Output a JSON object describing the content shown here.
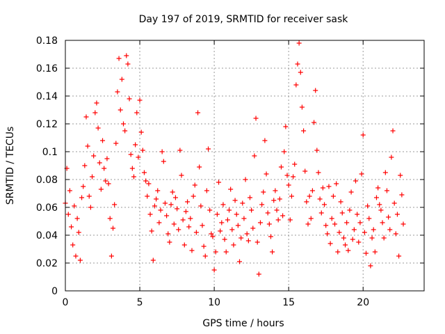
{
  "chart_data": {
    "type": "scatter",
    "title": "Day 197 of 2019, SRMTID for receiver sask",
    "xlabel": "GPS time / hours",
    "ylabel": "SRMTID / TECUs",
    "xlim": [
      0,
      24.1
    ],
    "ylim": [
      0,
      0.18
    ],
    "x_ticks": [
      {
        "value": 0,
        "label": "0"
      },
      {
        "value": 5,
        "label": "5"
      },
      {
        "value": 10,
        "label": "10"
      },
      {
        "value": 15,
        "label": "15"
      },
      {
        "value": 20,
        "label": "20"
      }
    ],
    "y_ticks": [
      {
        "value": 0,
        "label": "0"
      },
      {
        "value": 0.02,
        "label": "0.02"
      },
      {
        "value": 0.04,
        "label": "0.04"
      },
      {
        "value": 0.06,
        "label": "0.06"
      },
      {
        "value": 0.08,
        "label": "0.08"
      },
      {
        "value": 0.1,
        "label": "0.1"
      },
      {
        "value": 0.12,
        "label": "0.12"
      },
      {
        "value": 0.14,
        "label": "0.14"
      },
      {
        "value": 0.16,
        "label": "0.16"
      },
      {
        "value": 0.18,
        "label": "0.18"
      }
    ],
    "grid": true,
    "marker": "+",
    "color": "#ff0000",
    "series": [
      {
        "name": "SRMTID",
        "points": [
          [
            0.0,
            0.063
          ],
          [
            0.1,
            0.088
          ],
          [
            0.2,
            0.055
          ],
          [
            0.3,
            0.072
          ],
          [
            0.4,
            0.046
          ],
          [
            0.5,
            0.033
          ],
          [
            0.6,
            0.061
          ],
          [
            0.7,
            0.025
          ],
          [
            0.8,
            0.052
          ],
          [
            0.9,
            0.042
          ],
          [
            1.0,
            0.022
          ],
          [
            1.1,
            0.067
          ],
          [
            1.2,
            0.075
          ],
          [
            1.3,
            0.09
          ],
          [
            1.4,
            0.125
          ],
          [
            1.5,
            0.104
          ],
          [
            1.6,
            0.068
          ],
          [
            1.7,
            0.06
          ],
          [
            1.8,
            0.082
          ],
          [
            1.9,
            0.097
          ],
          [
            2.0,
            0.128
          ],
          [
            2.1,
            0.135
          ],
          [
            2.2,
            0.117
          ],
          [
            2.3,
            0.092
          ],
          [
            2.4,
            0.073
          ],
          [
            2.5,
            0.108
          ],
          [
            2.6,
            0.088
          ],
          [
            2.7,
            0.079
          ],
          [
            2.8,
            0.095
          ],
          [
            2.9,
            0.077
          ],
          [
            3.0,
            0.052
          ],
          [
            3.1,
            0.025
          ],
          [
            3.2,
            0.045
          ],
          [
            3.3,
            0.062
          ],
          [
            3.4,
            0.106
          ],
          [
            3.5,
            0.143
          ],
          [
            3.6,
            0.167
          ],
          [
            3.7,
            0.13
          ],
          [
            3.8,
            0.152
          ],
          [
            3.9,
            0.12
          ],
          [
            4.0,
            0.115
          ],
          [
            4.1,
            0.169
          ],
          [
            4.2,
            0.163
          ],
          [
            4.3,
            0.138
          ],
          [
            4.4,
            0.098
          ],
          [
            4.5,
            0.088
          ],
          [
            4.6,
            0.082
          ],
          [
            4.7,
            0.105
          ],
          [
            4.8,
            0.128
          ],
          [
            4.9,
            0.096
          ],
          [
            5.0,
            0.137
          ],
          [
            5.1,
            0.114
          ],
          [
            5.2,
            0.101
          ],
          [
            5.3,
            0.085
          ],
          [
            5.4,
            0.079
          ],
          [
            5.5,
            0.068
          ],
          [
            5.6,
            0.077
          ],
          [
            5.7,
            0.055
          ],
          [
            5.8,
            0.043
          ],
          [
            5.9,
            0.022
          ],
          [
            6.0,
            0.061
          ],
          [
            6.1,
            0.066
          ],
          [
            6.2,
            0.072
          ],
          [
            6.3,
            0.049
          ],
          [
            6.4,
            0.058
          ],
          [
            6.5,
            0.1
          ],
          [
            6.6,
            0.093
          ],
          [
            6.7,
            0.063
          ],
          [
            6.8,
            0.054
          ],
          [
            6.9,
            0.041
          ],
          [
            7.0,
            0.035
          ],
          [
            7.1,
            0.062
          ],
          [
            7.2,
            0.071
          ],
          [
            7.3,
            0.048
          ],
          [
            7.4,
            0.067
          ],
          [
            7.5,
            0.059
          ],
          [
            7.6,
            0.044
          ],
          [
            7.7,
            0.101
          ],
          [
            7.8,
            0.083
          ],
          [
            7.9,
            0.051
          ],
          [
            8.0,
            0.033
          ],
          [
            8.1,
            0.057
          ],
          [
            8.2,
            0.064
          ],
          [
            8.3,
            0.046
          ],
          [
            8.4,
            0.052
          ],
          [
            8.5,
            0.029
          ],
          [
            8.6,
            0.068
          ],
          [
            8.7,
            0.076
          ],
          [
            8.8,
            0.042
          ],
          [
            8.9,
            0.128
          ],
          [
            9.0,
            0.089
          ],
          [
            9.1,
            0.061
          ],
          [
            9.2,
            0.047
          ],
          [
            9.3,
            0.032
          ],
          [
            9.4,
            0.025
          ],
          [
            9.5,
            0.072
          ],
          [
            9.6,
            0.102
          ],
          [
            9.7,
            0.058
          ],
          [
            9.8,
            0.041
          ],
          [
            9.9,
            0.039
          ],
          [
            10.0,
            0.015
          ],
          [
            10.1,
            0.028
          ],
          [
            10.2,
            0.055
          ],
          [
            10.3,
            0.078
          ],
          [
            10.4,
            0.043
          ],
          [
            10.5,
            0.049
          ],
          [
            10.6,
            0.062
          ],
          [
            10.7,
            0.037
          ],
          [
            10.8,
            0.028
          ],
          [
            10.9,
            0.051
          ],
          [
            11.0,
            0.058
          ],
          [
            11.1,
            0.073
          ],
          [
            11.2,
            0.044
          ],
          [
            11.3,
            0.033
          ],
          [
            11.4,
            0.065
          ],
          [
            11.5,
            0.055
          ],
          [
            11.6,
            0.047
          ],
          [
            11.7,
            0.021
          ],
          [
            11.8,
            0.038
          ],
          [
            11.9,
            0.063
          ],
          [
            12.0,
            0.052
          ],
          [
            12.1,
            0.08
          ],
          [
            12.2,
            0.041
          ],
          [
            12.3,
            0.036
          ],
          [
            12.4,
            0.067
          ],
          [
            12.5,
            0.058
          ],
          [
            12.6,
            0.045
          ],
          [
            12.7,
            0.097
          ],
          [
            12.8,
            0.124
          ],
          [
            12.9,
            0.035
          ],
          [
            13.0,
            0.012
          ],
          [
            13.1,
            0.049
          ],
          [
            13.2,
            0.062
          ],
          [
            13.3,
            0.071
          ],
          [
            13.4,
            0.108
          ],
          [
            13.5,
            0.084
          ],
          [
            13.6,
            0.056
          ],
          [
            13.7,
            0.048
          ],
          [
            13.8,
            0.039
          ],
          [
            13.9,
            0.028
          ],
          [
            14.0,
            0.065
          ],
          [
            14.1,
            0.072
          ],
          [
            14.2,
            0.058
          ],
          [
            14.3,
            0.051
          ],
          [
            14.4,
            0.066
          ],
          [
            14.5,
            0.089
          ],
          [
            14.6,
            0.054
          ],
          [
            14.7,
            0.1
          ],
          [
            14.8,
            0.118
          ],
          [
            14.9,
            0.083
          ],
          [
            15.0,
            0.076
          ],
          [
            15.1,
            0.051
          ],
          [
            15.2,
            0.068
          ],
          [
            15.3,
            0.082
          ],
          [
            15.4,
            0.091
          ],
          [
            15.5,
            0.148
          ],
          [
            15.6,
            0.163
          ],
          [
            15.7,
            0.178
          ],
          [
            15.8,
            0.157
          ],
          [
            15.9,
            0.132
          ],
          [
            16.0,
            0.115
          ],
          [
            16.1,
            0.086
          ],
          [
            16.2,
            0.064
          ],
          [
            16.3,
            0.048
          ],
          [
            16.4,
            0.068
          ],
          [
            16.5,
            0.052
          ],
          [
            16.6,
            0.072
          ],
          [
            16.7,
            0.121
          ],
          [
            16.8,
            0.144
          ],
          [
            16.9,
            0.101
          ],
          [
            17.0,
            0.085
          ],
          [
            17.1,
            0.066
          ],
          [
            17.2,
            0.056
          ],
          [
            17.3,
            0.074
          ],
          [
            17.4,
            0.062
          ],
          [
            17.5,
            0.047
          ],
          [
            17.6,
            0.041
          ],
          [
            17.7,
            0.075
          ],
          [
            17.8,
            0.034
          ],
          [
            17.9,
            0.052
          ],
          [
            18.0,
            0.068
          ],
          [
            18.1,
            0.048
          ],
          [
            18.2,
            0.077
          ],
          [
            18.3,
            0.028
          ],
          [
            18.4,
            0.042
          ],
          [
            18.5,
            0.064
          ],
          [
            18.6,
            0.056
          ],
          [
            18.7,
            0.038
          ],
          [
            18.8,
            0.033
          ],
          [
            18.9,
            0.049
          ],
          [
            19.0,
            0.029
          ],
          [
            19.1,
            0.058
          ],
          [
            19.2,
            0.071
          ],
          [
            19.3,
            0.037
          ],
          [
            19.4,
            0.044
          ],
          [
            19.5,
            0.079
          ],
          [
            19.6,
            0.055
          ],
          [
            19.7,
            0.035
          ],
          [
            19.8,
            0.049
          ],
          [
            19.9,
            0.084
          ],
          [
            20.0,
            0.112
          ],
          [
            20.1,
            0.042
          ],
          [
            20.2,
            0.027
          ],
          [
            20.3,
            0.061
          ],
          [
            20.4,
            0.052
          ],
          [
            20.5,
            0.018
          ],
          [
            20.6,
            0.038
          ],
          [
            20.7,
            0.044
          ],
          [
            20.8,
            0.028
          ],
          [
            20.9,
            0.067
          ],
          [
            21.0,
            0.074
          ],
          [
            21.1,
            0.062
          ],
          [
            21.2,
            0.058
          ],
          [
            21.3,
            0.049
          ],
          [
            21.4,
            0.038
          ],
          [
            21.5,
            0.085
          ],
          [
            21.6,
            0.072
          ],
          [
            21.7,
            0.053
          ],
          [
            21.8,
            0.044
          ],
          [
            21.9,
            0.096
          ],
          [
            22.0,
            0.115
          ],
          [
            22.1,
            0.063
          ],
          [
            22.2,
            0.041
          ],
          [
            22.3,
            0.055
          ],
          [
            22.4,
            0.025
          ],
          [
            22.5,
            0.083
          ],
          [
            22.6,
            0.069
          ],
          [
            22.7,
            0.048
          ]
        ]
      }
    ]
  }
}
